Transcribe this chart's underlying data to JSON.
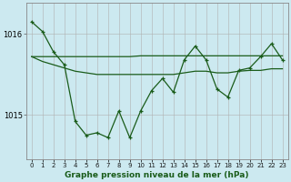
{
  "xlabel_bottom": "Graphe pression niveau de la mer (hPa)",
  "background_color": "#cce9f0",
  "grid_color": "#b0b0b0",
  "line_color": "#1a5c1a",
  "hours": [
    0,
    1,
    2,
    3,
    4,
    5,
    6,
    7,
    8,
    9,
    10,
    11,
    12,
    13,
    14,
    15,
    16,
    17,
    18,
    19,
    20,
    21,
    22,
    23
  ],
  "pressure_data": [
    1016.15,
    1016.03,
    1015.78,
    1015.62,
    1014.92,
    1014.75,
    1014.78,
    1014.72,
    1015.05,
    1014.72,
    1015.05,
    1015.3,
    1015.45,
    1015.28,
    1015.68,
    1015.85,
    1015.68,
    1015.32,
    1015.22,
    1015.55,
    1015.58,
    1015.72,
    1015.88,
    1015.68
  ],
  "line1_data": [
    1015.72,
    1015.72,
    1015.72,
    1015.72,
    1015.72,
    1015.72,
    1015.72,
    1015.72,
    1015.72,
    1015.72,
    1015.73,
    1015.73,
    1015.73,
    1015.73,
    1015.73,
    1015.73,
    1015.73,
    1015.73,
    1015.73,
    1015.73,
    1015.73,
    1015.73,
    1015.73,
    1015.73
  ],
  "line2_data": [
    1015.72,
    1015.66,
    1015.62,
    1015.58,
    1015.54,
    1015.52,
    1015.5,
    1015.5,
    1015.5,
    1015.5,
    1015.5,
    1015.5,
    1015.5,
    1015.5,
    1015.52,
    1015.54,
    1015.54,
    1015.52,
    1015.52,
    1015.54,
    1015.55,
    1015.55,
    1015.57,
    1015.57
  ],
  "yticks": [
    1015,
    1016
  ],
  "ylim": [
    1014.45,
    1016.38
  ],
  "xlim": [
    -0.5,
    23.5
  ],
  "figsize": [
    3.2,
    2.0
  ],
  "dpi": 100
}
